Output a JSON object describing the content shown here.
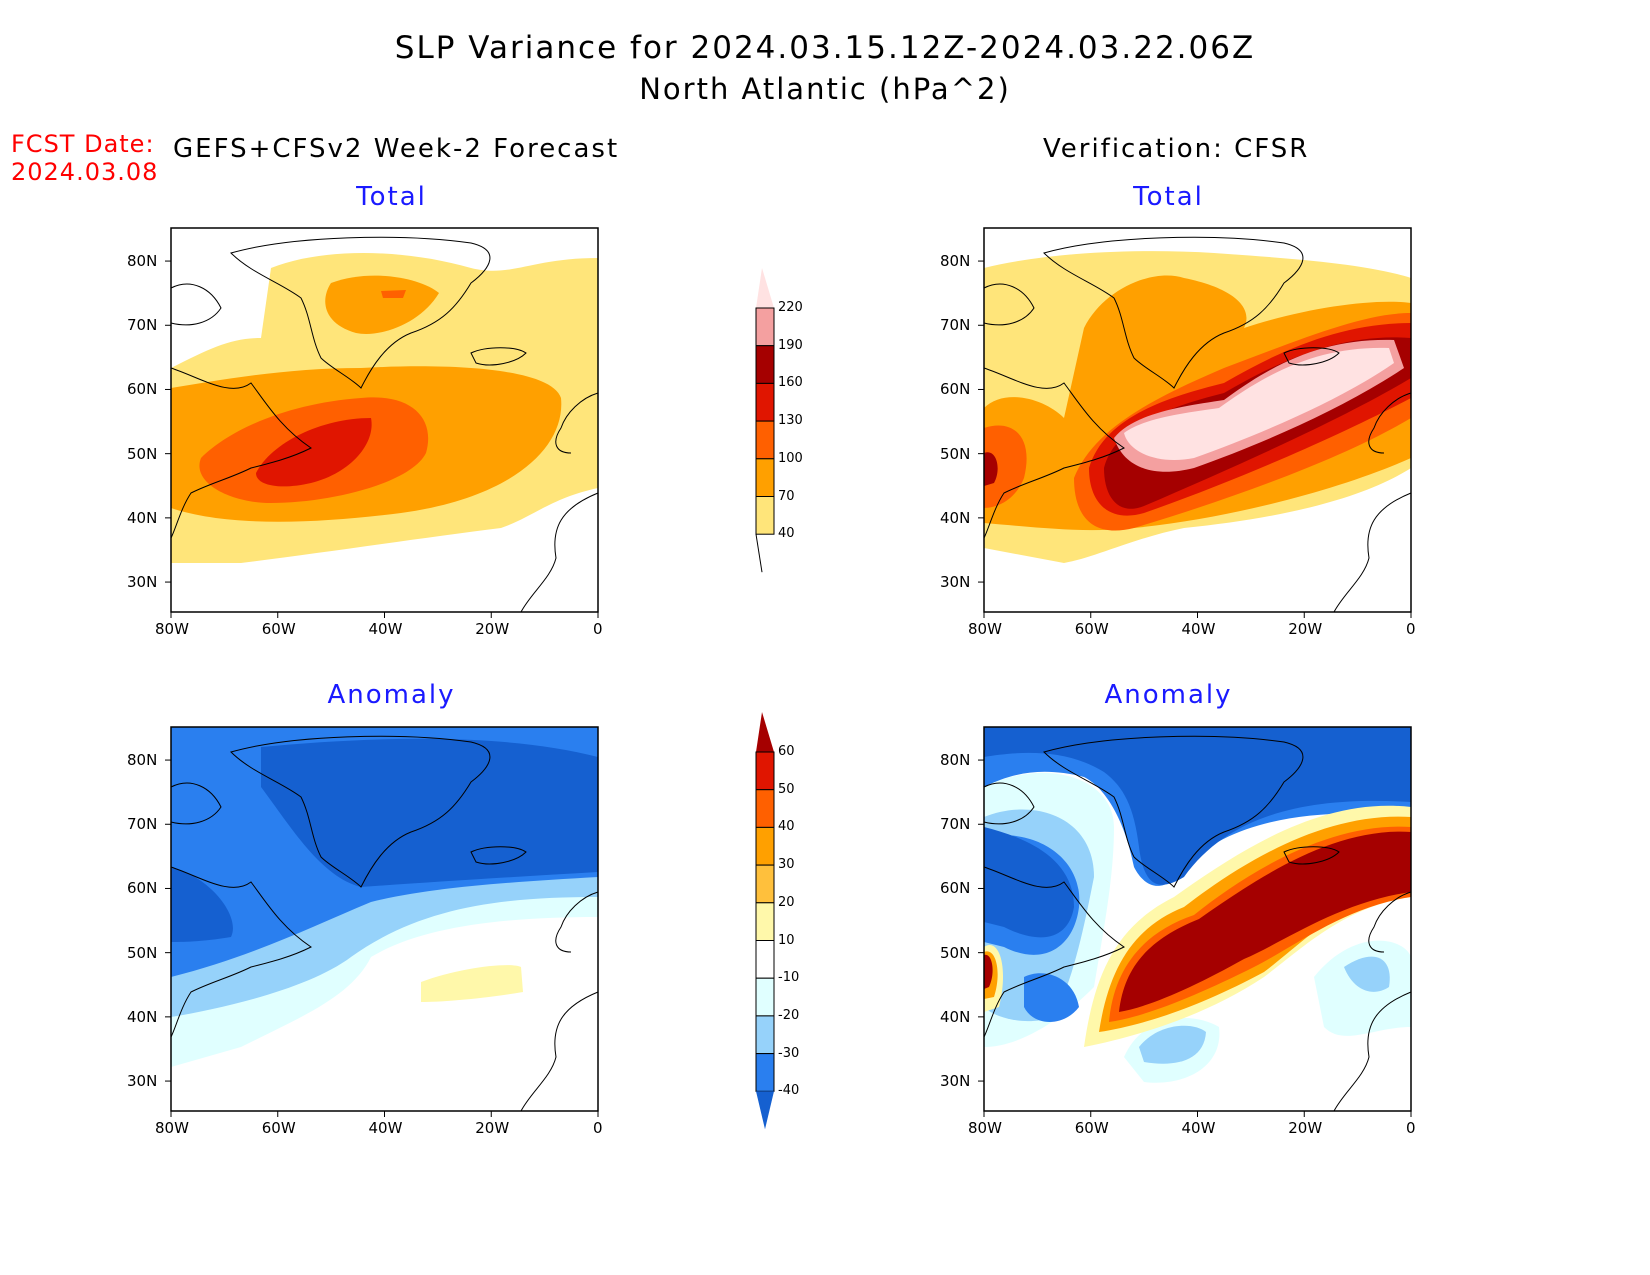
{
  "title": {
    "line1": "SLP Variance for 2024.03.15.12Z-2024.03.22.06Z",
    "line2": "North Atlantic (hPa^2)"
  },
  "forecast_date": {
    "label": "FCST Date:",
    "value": "2024.03.08"
  },
  "columns": {
    "left": "GEFS+CFSv2 Week-2 Forecast",
    "right": "Verification: CFSR"
  },
  "panels": {
    "total": "Total",
    "anomaly": "Anomaly"
  },
  "axes": {
    "lat_labels": [
      "80N",
      "70N",
      "60N",
      "50N",
      "40N",
      "30N"
    ],
    "lat_values": [
      80,
      70,
      60,
      50,
      40,
      30
    ],
    "lon_labels": [
      "80W",
      "60W",
      "40W",
      "20W",
      "0"
    ],
    "lon_values": [
      -80,
      -60,
      -40,
      -20,
      0
    ]
  },
  "colorbars": {
    "total": {
      "levels": [
        "40",
        "70",
        "100",
        "130",
        "160",
        "190",
        "220"
      ],
      "colors": [
        "#ffe57a",
        "#ffa000",
        "#ff6000",
        "#e01500",
        "#a50000",
        "#f4a0a0",
        "#ffe2e2"
      ]
    },
    "anomaly": {
      "levels": [
        "-40",
        "-30",
        "-20",
        "-10",
        "10",
        "20",
        "30",
        "40",
        "50",
        "60"
      ],
      "colors": [
        "#1560d0",
        "#2a7fef",
        "#96d2fa",
        "#e0ffff",
        "#ffffff",
        "#fff8aa",
        "#ffc03c",
        "#ffa000",
        "#ff6000",
        "#e01500",
        "#a50000"
      ]
    }
  }
}
